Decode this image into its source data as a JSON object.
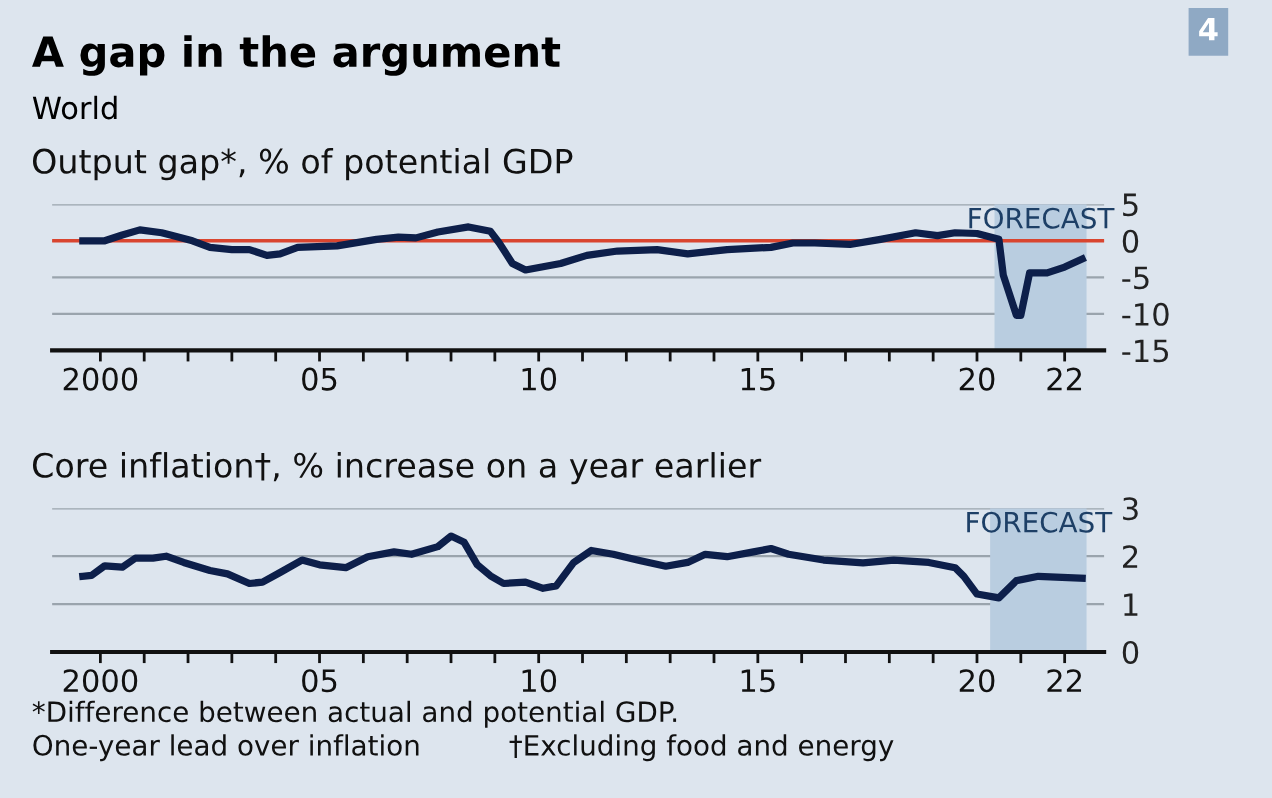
{
  "chart_data": [
    {
      "type": "line",
      "title": "Output gap*, % of potential GDP",
      "annotations": [
        "A gap in the argument",
        "World",
        "4"
      ],
      "series": [
        {
          "color": "#0d1f4a",
          "x": [
            1999.6,
            2000.1,
            2000.5,
            2000.9,
            2001.4,
            2001.6,
            2002.1,
            2002.5,
            2003.0,
            2003.4,
            2003.8,
            2004.1,
            2004.5,
            2005.4,
            2006.3,
            2006.8,
            2007.2,
            2007.7,
            2008.4,
            2008.9,
            2009.1,
            2009.4,
            2009.7,
            2010.5,
            2011.1,
            2011.8,
            2012.7,
            2013.4,
            2014.3,
            2015.3,
            2015.8,
            2016.3,
            2017.1,
            2017.8,
            2018.6,
            2019.1,
            2019.5,
            2020.0,
            2020.5,
            2020.6,
            2020.9,
            2021.0,
            2021.2,
            2021.6,
            2022.0,
            2022.4
          ],
          "values": [
            0,
            0,
            0.8,
            1.5,
            1.1,
            0.8,
            0,
            -0.9,
            -1.2,
            -1.2,
            -2.0,
            -1.8,
            -0.9,
            -0.7,
            0.2,
            0.5,
            0.4,
            1.2,
            1.9,
            1.3,
            -0.3,
            -3.1,
            -4.0,
            -3.1,
            -2.0,
            -1.4,
            -1.2,
            -1.8,
            -1.2,
            -0.9,
            -0.3,
            -0.3,
            -0.5,
            0.2,
            1.1,
            0.7,
            1.1,
            1.0,
            0.2,
            -4.7,
            -10.2,
            -10.2,
            -4.4,
            -4.4,
            -3.6,
            -2.5
          ]
        }
      ],
      "xlim": [
        1998.9,
        2022.9
      ],
      "xticks": [
        {
          "value": 2000,
          "label": "2000"
        },
        {
          "value": 2001,
          "label": null
        },
        {
          "value": 2002,
          "label": null
        },
        {
          "value": 2003,
          "label": null
        },
        {
          "value": 2004,
          "label": null
        },
        {
          "value": 2005,
          "label": "05"
        },
        {
          "value": 2006,
          "label": null
        },
        {
          "value": 2007,
          "label": null
        },
        {
          "value": 2008,
          "label": null
        },
        {
          "value": 2009,
          "label": null
        },
        {
          "value": 2010,
          "label": "10"
        },
        {
          "value": 2011,
          "label": null
        },
        {
          "value": 2012,
          "label": null
        },
        {
          "value": 2013,
          "label": null
        },
        {
          "value": 2014,
          "label": null
        },
        {
          "value": 2015,
          "label": "15"
        },
        {
          "value": 2016,
          "label": null
        },
        {
          "value": 2017,
          "label": null
        },
        {
          "value": 2018,
          "label": null
        },
        {
          "value": 2019,
          "label": null
        },
        {
          "value": 2020,
          "label": "20"
        },
        {
          "value": 2021,
          "label": null
        },
        {
          "value": 2022,
          "label": "22"
        }
      ],
      "ylim": [
        -15,
        5
      ],
      "yticks": [
        -15,
        -10,
        -5,
        0,
        5
      ],
      "grid": "y",
      "ref_lines": [
        {
          "axis": "y",
          "value": 0,
          "color": "#d9452f"
        }
      ],
      "bands": [
        {
          "axis": "x",
          "from": 2020.4,
          "to": 2022.5,
          "label": "FORECAST",
          "color": "#b9cde0"
        }
      ]
    },
    {
      "type": "line",
      "title": "Core inflation†, % increase on a year earlier",
      "annotations": [
        "*Difference between actual and potential GDP.",
        "One-year lead over inflation",
        "†Excluding food and energy"
      ],
      "series": [
        {
          "color": "#0d1f4a",
          "x": [
            1999.6,
            1999.8,
            2000.1,
            2000.5,
            2000.8,
            2001.2,
            2001.5,
            2001.9,
            2002.5,
            2002.9,
            2003.4,
            2003.7,
            2004.1,
            2004.6,
            2005.0,
            2005.6,
            2006.1,
            2006.7,
            2007.1,
            2007.7,
            2008.0,
            2008.3,
            2008.6,
            2008.9,
            2009.2,
            2009.7,
            2010.1,
            2010.4,
            2010.8,
            2011.2,
            2011.7,
            2012.3,
            2012.9,
            2013.4,
            2013.8,
            2014.3,
            2014.9,
            2015.3,
            2015.7,
            2016.5,
            2017.4,
            2018.1,
            2018.9,
            2019.5,
            2019.7,
            2020.0,
            2020.5,
            2020.9,
            2021.4,
            2022.4
          ],
          "values": [
            1.58,
            1.6,
            1.8,
            1.77,
            1.96,
            1.96,
            2.0,
            1.87,
            1.7,
            1.63,
            1.43,
            1.46,
            1.66,
            1.92,
            1.82,
            1.76,
            1.99,
            2.09,
            2.04,
            2.2,
            2.42,
            2.29,
            1.82,
            1.59,
            1.43,
            1.46,
            1.33,
            1.38,
            1.87,
            2.12,
            2.04,
            1.91,
            1.79,
            1.87,
            2.04,
            1.99,
            2.09,
            2.16,
            2.04,
            1.92,
            1.86,
            1.92,
            1.87,
            1.76,
            1.58,
            1.21,
            1.13,
            1.49,
            1.58,
            1.54
          ]
        }
      ],
      "xlim": [
        1998.9,
        2022.9
      ],
      "xticks": [
        {
          "value": 2000,
          "label": "2000"
        },
        {
          "value": 2001,
          "label": null
        },
        {
          "value": 2002,
          "label": null
        },
        {
          "value": 2003,
          "label": null
        },
        {
          "value": 2004,
          "label": null
        },
        {
          "value": 2005,
          "label": "05"
        },
        {
          "value": 2006,
          "label": null
        },
        {
          "value": 2007,
          "label": null
        },
        {
          "value": 2008,
          "label": null
        },
        {
          "value": 2009,
          "label": null
        },
        {
          "value": 2010,
          "label": "10"
        },
        {
          "value": 2011,
          "label": null
        },
        {
          "value": 2012,
          "label": null
        },
        {
          "value": 2013,
          "label": null
        },
        {
          "value": 2014,
          "label": null
        },
        {
          "value": 2015,
          "label": "15"
        },
        {
          "value": 2016,
          "label": null
        },
        {
          "value": 2017,
          "label": null
        },
        {
          "value": 2018,
          "label": null
        },
        {
          "value": 2019,
          "label": null
        },
        {
          "value": 2020,
          "label": "20"
        },
        {
          "value": 2021,
          "label": null
        },
        {
          "value": 2022,
          "label": "22"
        }
      ],
      "ylim": [
        0,
        3
      ],
      "yticks": [
        0,
        1,
        2,
        3
      ],
      "grid": "y",
      "bands": [
        {
          "axis": "x",
          "from": 2020.3,
          "to": 2022.5,
          "label": "FORECAST",
          "color": "#b9cde0"
        }
      ]
    }
  ]
}
